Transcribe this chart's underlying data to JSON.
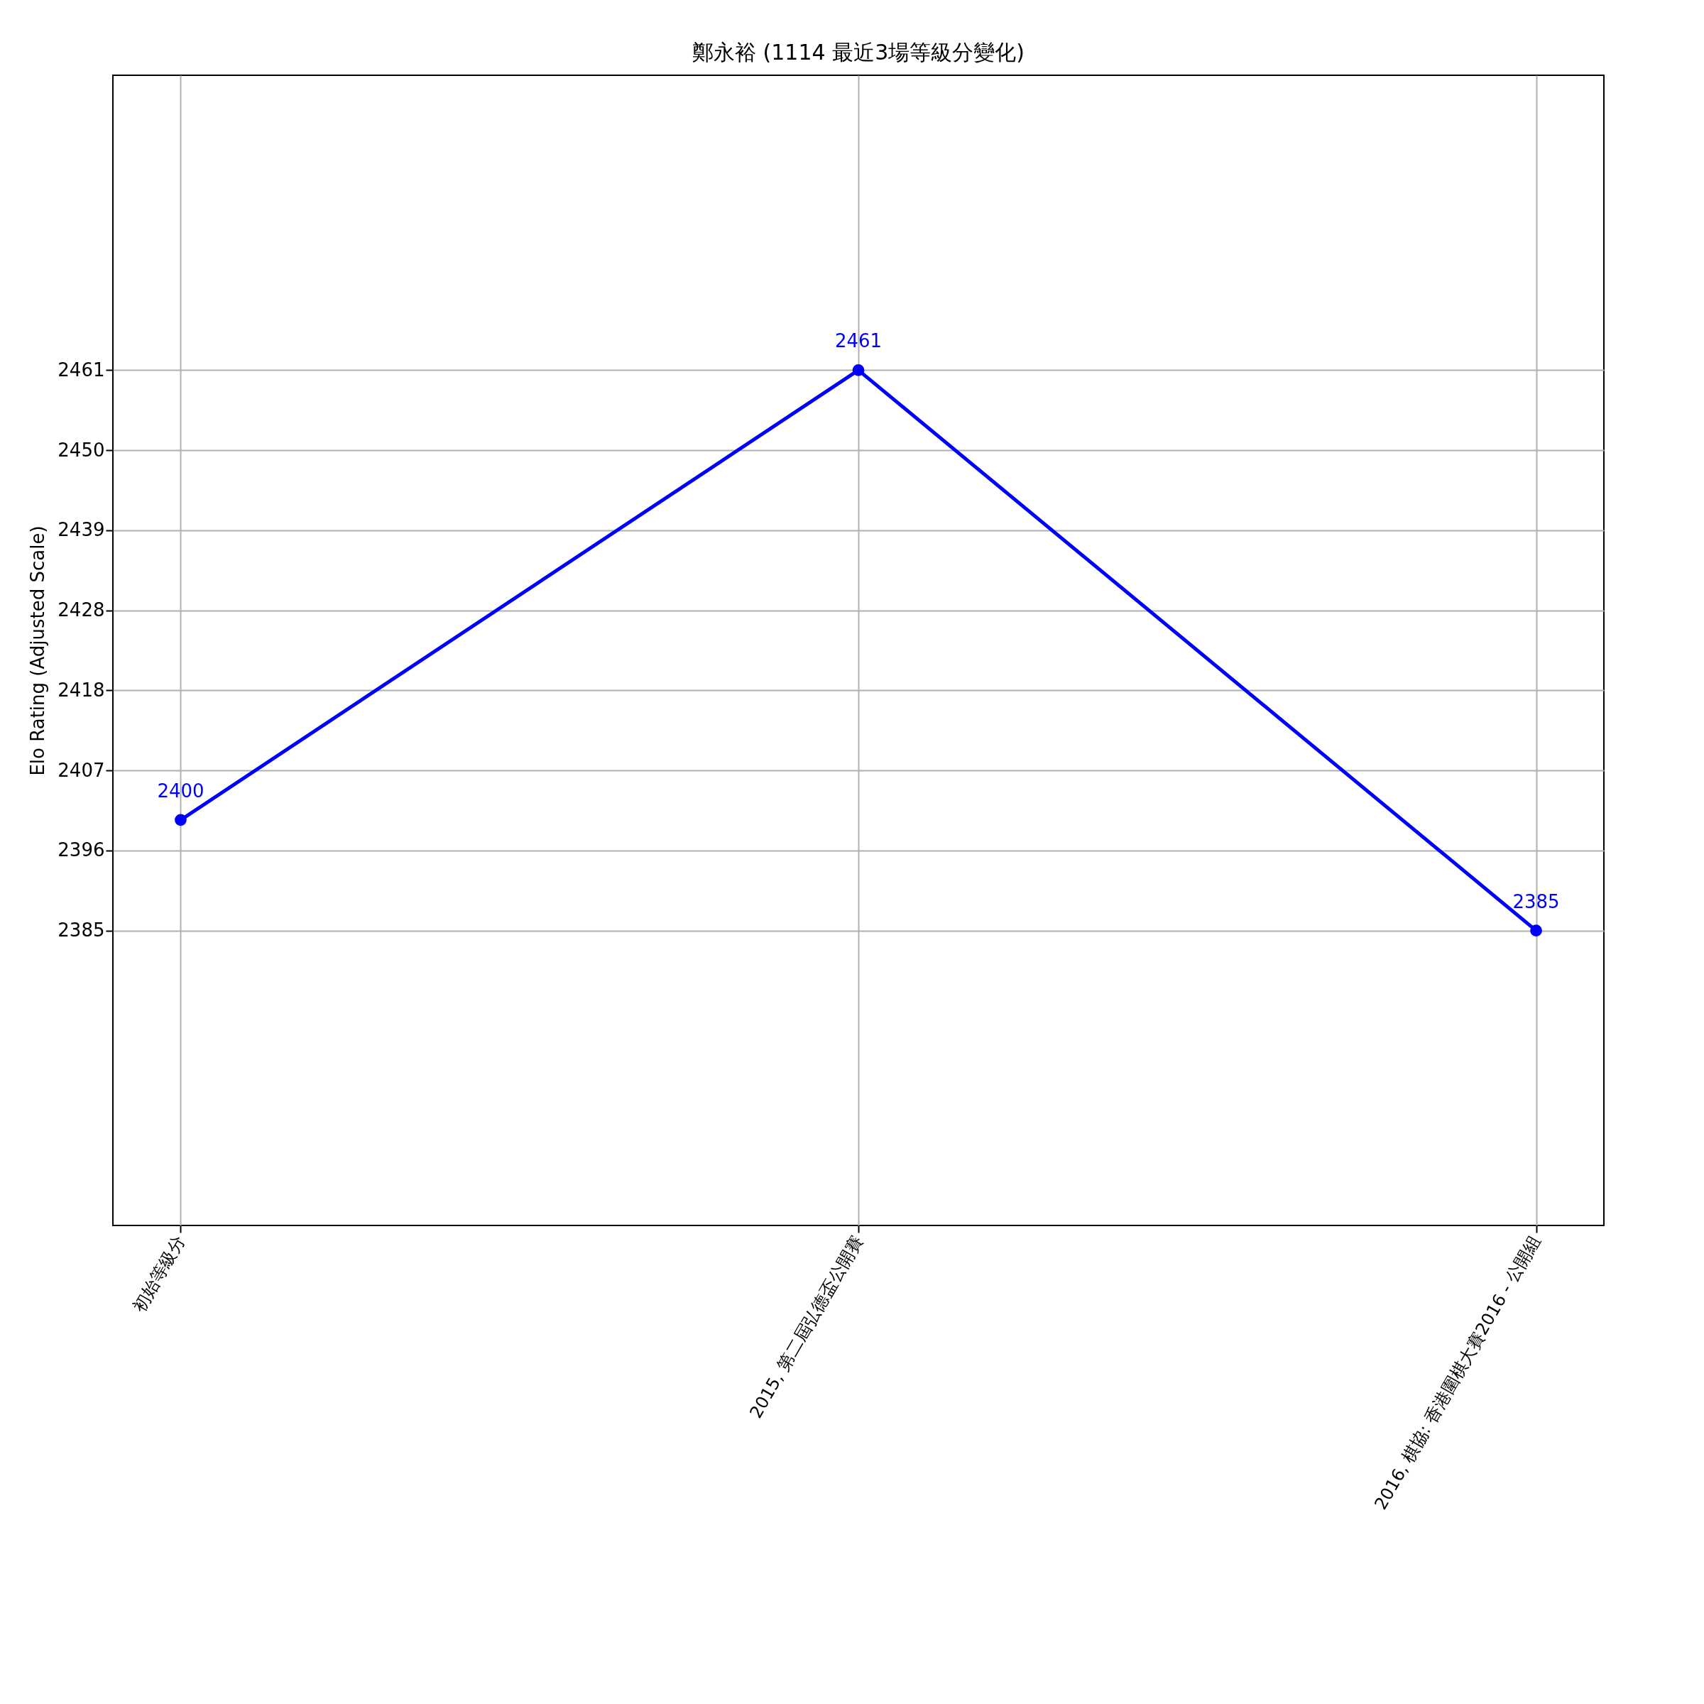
{
  "chart_data": {
    "type": "line",
    "title": "鄭永裕 (1114 最近3場等級分變化)",
    "ylabel": "Elo Rating (Adjusted Scale)",
    "categories": [
      "初始等級分",
      "2015, 第二屆弘德盃公開賽",
      "2016, 棋協: 香港圍棋大賽2016 - 公開組"
    ],
    "series": [
      {
        "color": "#0000ff",
        "values": [
          2400,
          2461,
          2385
        ]
      }
    ],
    "ylim": [
      2345,
      2501
    ],
    "yticks": [
      2385,
      {
        "value": 2395.857,
        "label": "2396"
      },
      {
        "value": 2406.714,
        "label": "2407"
      },
      {
        "value": 2417.571,
        "label": "2418"
      },
      {
        "value": 2428.429,
        "label": "2428"
      },
      {
        "value": 2439.286,
        "label": "2439"
      },
      {
        "value": 2450.143,
        "label": "2450"
      },
      2461
    ],
    "grid": true,
    "marker": "circle",
    "line_style": "solid",
    "data_labels": true
  }
}
